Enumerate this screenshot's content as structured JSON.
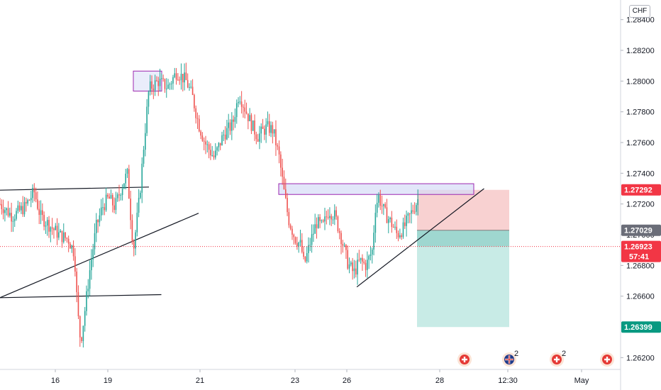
{
  "currency": "CHF",
  "colors": {
    "up": "#26a69a",
    "down": "#ef5350",
    "accent_red": "#f23645",
    "grey_tag": "#6a6d78",
    "teal_tag": "#089981",
    "stop_zone": "#f7c9c9",
    "target_zone": "#c8ebe6",
    "entry_band": "#9fd7d0",
    "resistance_box": "#d6dcf7",
    "box_border": "#9c27b0"
  },
  "chart_data": {
    "type": "candlestick",
    "instrument": "CHF",
    "y_range": [
      1.261,
      1.285
    ],
    "y_ticks": [
      "1.28400",
      "1.28200",
      "1.28000",
      "1.27800",
      "1.27600",
      "1.27400",
      "1.27200",
      "1.27000",
      "1.26800",
      "1.26600",
      "1.26200"
    ],
    "x_tick_labels": [
      "16",
      "19",
      "21",
      "23",
      "26",
      "28",
      "12:30",
      "May"
    ],
    "price_tags": [
      {
        "value": 1.27292,
        "label": "1.27292",
        "color": "#f23645"
      },
      {
        "value": 1.27029,
        "label": "1.27029",
        "color": "#6a6d78"
      },
      {
        "value": 1.26923,
        "label": "1.26923",
        "sublabel": "57:41",
        "color": "#f23645"
      },
      {
        "value": 1.26399,
        "label": "1.26399",
        "color": "#089981"
      }
    ],
    "current_price": 1.26923,
    "countdown": "57:41",
    "position": {
      "type": "short",
      "entry": 1.27029,
      "stop": 1.27292,
      "target": 1.26399
    },
    "resistance_zone": [
      1.27262,
      1.27332
    ],
    "top_box": [
      1.28065,
      1.27935
    ],
    "event_markers": [
      {
        "icon": "swiss-flag",
        "count": ""
      },
      {
        "icon": "uk-flag",
        "count": "2"
      },
      {
        "icon": "swiss-flag",
        "count": "2"
      },
      {
        "icon": "swiss-flag",
        "count": ""
      }
    ],
    "price_path": [
      [
        0,
        1.272
      ],
      [
        0.02,
        1.2712
      ],
      [
        0.04,
        1.2718
      ],
      [
        0.055,
        1.2728
      ],
      [
        0.065,
        1.2712
      ],
      [
        0.08,
        1.2706
      ],
      [
        0.095,
        1.27
      ],
      [
        0.11,
        1.2697
      ],
      [
        0.12,
        1.2688
      ],
      [
        0.125,
        1.265
      ],
      [
        0.13,
        1.263
      ],
      [
        0.135,
        1.2645
      ],
      [
        0.145,
        1.2678
      ],
      [
        0.155,
        1.2705
      ],
      [
        0.165,
        1.2718
      ],
      [
        0.175,
        1.2724
      ],
      [
        0.185,
        1.2718
      ],
      [
        0.195,
        1.273
      ],
      [
        0.205,
        1.274
      ],
      [
        0.21,
        1.2715
      ],
      [
        0.215,
        1.269
      ],
      [
        0.225,
        1.2725
      ],
      [
        0.232,
        1.276
      ],
      [
        0.24,
        1.2795
      ],
      [
        0.255,
        1.28
      ],
      [
        0.27,
        1.2796
      ],
      [
        0.285,
        1.2806
      ],
      [
        0.3,
        1.28
      ],
      [
        0.31,
        1.279
      ],
      [
        0.32,
        1.2772
      ],
      [
        0.33,
        1.276
      ],
      [
        0.345,
        1.275
      ],
      [
        0.36,
        1.2765
      ],
      [
        0.375,
        1.2772
      ],
      [
        0.385,
        1.2792
      ],
      [
        0.395,
        1.2782
      ],
      [
        0.405,
        1.2772
      ],
      [
        0.415,
        1.2764
      ],
      [
        0.43,
        1.277
      ],
      [
        0.44,
        1.2768
      ],
      [
        0.45,
        1.275
      ],
      [
        0.458,
        1.2727
      ],
      [
        0.465,
        1.271
      ],
      [
        0.475,
        1.2698
      ],
      [
        0.485,
        1.2693
      ],
      [
        0.49,
        1.268
      ],
      [
        0.5,
        1.2695
      ],
      [
        0.51,
        1.2708
      ],
      [
        0.52,
        1.2705
      ],
      [
        0.53,
        1.2716
      ],
      [
        0.54,
        1.2712
      ],
      [
        0.55,
        1.2698
      ],
      [
        0.56,
        1.2682
      ],
      [
        0.57,
        1.2675
      ],
      [
        0.58,
        1.2683
      ],
      [
        0.59,
        1.268
      ],
      [
        0.6,
        1.269
      ],
      [
        0.605,
        1.2718
      ],
      [
        0.61,
        1.2725
      ],
      [
        0.62,
        1.2714
      ],
      [
        0.63,
        1.2708
      ],
      [
        0.64,
        1.27
      ],
      [
        0.65,
        1.2704
      ],
      [
        0.66,
        1.2712
      ],
      [
        0.67,
        1.272
      ],
      [
        0.68,
        1.2729
      ],
      [
        0.69,
        1.2712
      ],
      [
        0.7,
        1.2695
      ]
    ],
    "trend_lines": [
      {
        "from": [
          0,
          1.2729
        ],
        "to": [
          0.24,
          1.2731
        ]
      },
      {
        "from": [
          0,
          1.2659
        ],
        "to": [
          0.32,
          1.2714
        ]
      },
      {
        "from": [
          0,
          1.2659
        ],
        "to": [
          0.26,
          1.2661
        ]
      },
      {
        "from": [
          0.575,
          1.2666
        ],
        "to": [
          0.78,
          1.273
        ]
      }
    ]
  }
}
